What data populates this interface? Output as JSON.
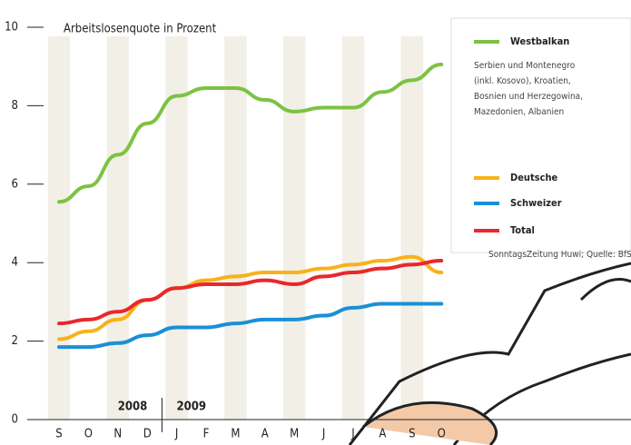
{
  "chart_data": {
    "type": "line",
    "title": "Arbeitslosenquote in Prozent",
    "categories": [
      "S",
      "O",
      "N",
      "D",
      "J",
      "F",
      "M",
      "A",
      "M",
      "J",
      "J",
      "A",
      "S",
      "O"
    ],
    "year_labels": [
      "2008",
      "2009"
    ],
    "series": [
      {
        "name": "Westbalkan",
        "color": "#7dc242",
        "values": [
          5.55,
          5.95,
          6.75,
          7.55,
          8.25,
          8.45,
          8.45,
          8.15,
          7.85,
          7.95,
          7.95,
          8.35,
          8.65,
          9.05
        ]
      },
      {
        "name": "Deutsche",
        "color": "#f7b21b",
        "values": [
          2.05,
          2.25,
          2.55,
          3.05,
          3.35,
          3.55,
          3.65,
          3.75,
          3.75,
          3.85,
          3.95,
          4.05,
          4.15,
          3.75
        ]
      },
      {
        "name": "Schweizer",
        "color": "#1b8fd6",
        "values": [
          1.85,
          1.85,
          1.95,
          2.15,
          2.35,
          2.35,
          2.45,
          2.55,
          2.55,
          2.65,
          2.85,
          2.95,
          2.95,
          2.95
        ]
      },
      {
        "name": "Total",
        "color": "#e8282d",
        "values": [
          2.45,
          2.55,
          2.75,
          3.05,
          3.35,
          3.45,
          3.45,
          3.55,
          3.45,
          3.65,
          3.75,
          3.85,
          3.95,
          4.05
        ]
      }
    ],
    "legend_note": [
      "Serbien und Montenegro",
      "(inkl. Kosovo), Kroatien,",
      "Bosnien und Herzegowina,",
      "Mazedonien, Albanien"
    ],
    "source": "SonntagsZeitung Huwi; Quelle: BfS",
    "ylim": [
      0,
      10
    ],
    "yticks": [
      0,
      2,
      4,
      6,
      8,
      10
    ]
  }
}
